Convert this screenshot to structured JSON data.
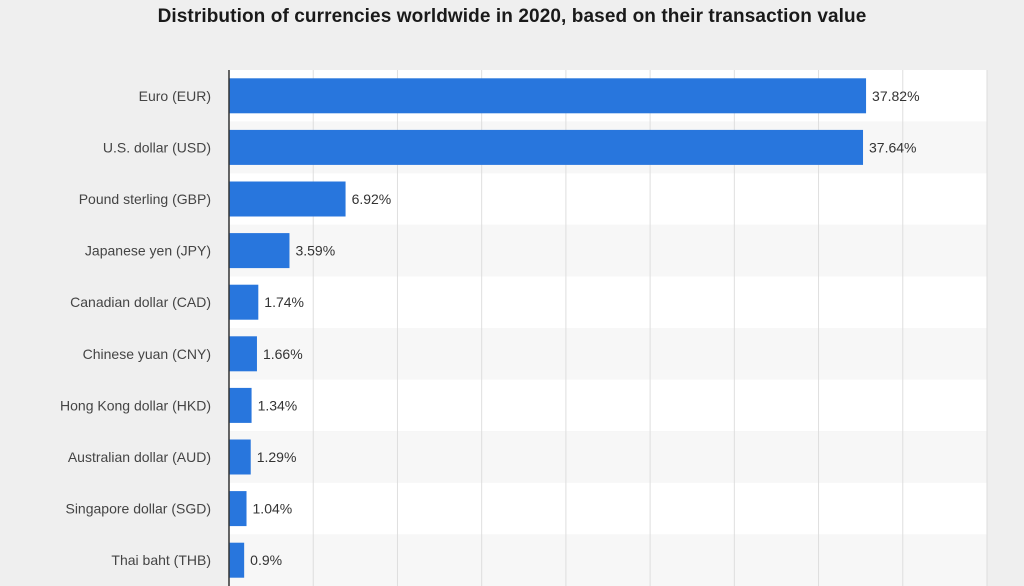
{
  "chart_data": {
    "type": "bar",
    "orientation": "horizontal",
    "title": "Distribution of currencies worldwide in 2020, based on their transaction value",
    "categories": [
      "Euro (EUR)",
      "U.S. dollar (USD)",
      "Pound sterling (GBP)",
      "Japanese yen (JPY)",
      "Canadian dollar (CAD)",
      "Chinese yuan (CNY)",
      "Hong Kong dollar (HKD)",
      "Australian dollar (AUD)",
      "Singapore dollar (SGD)",
      "Thai baht (THB)"
    ],
    "values": [
      37.82,
      37.64,
      6.92,
      3.59,
      1.74,
      1.66,
      1.34,
      1.29,
      1.04,
      0.9
    ],
    "value_labels": [
      "37.82%",
      "37.64%",
      "6.92%",
      "3.59%",
      "1.74%",
      "1.66%",
      "1.34%",
      "1.29%",
      "1.04%",
      "0.9%"
    ],
    "unit": "%",
    "xlim": [
      0,
      45
    ],
    "grid": true,
    "bar_color": "#2876dd"
  }
}
